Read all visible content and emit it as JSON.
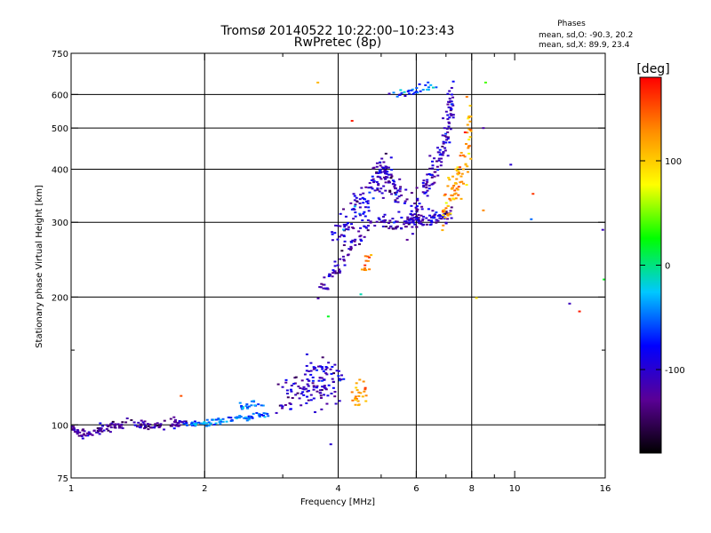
{
  "chart_data": {
    "type": "scatter",
    "title": "Tromsø 20140522 10:22:00–10:23:43",
    "subtitle": "RwPretec (8p)",
    "phase_info": {
      "heading": "Phases",
      "line_o": "mean, sd,O: -90.3, 20.2",
      "line_x": "mean, sd,X:  89.9, 23.4"
    },
    "xlabel": "Frequency [MHz]",
    "ylabel": "Stationary phase Virtual Height [km]",
    "x_scale": "log",
    "y_scale": "log",
    "xlim": [
      1,
      16
    ],
    "ylim": [
      75,
      750
    ],
    "x_ticks": [
      1,
      2,
      4,
      6,
      8,
      10,
      16
    ],
    "x_ticks_minor": [
      3,
      5,
      7,
      9
    ],
    "y_ticks": [
      75,
      100,
      200,
      300,
      400,
      500,
      600,
      750
    ],
    "y_ticks_minor": [
      150
    ],
    "grid_x": [
      2,
      4,
      6,
      8
    ],
    "grid_y": [
      100,
      200,
      300,
      400,
      500,
      600
    ],
    "grid": true,
    "colorbar": {
      "label": "[deg]",
      "ticks": [
        100,
        0,
        -100
      ],
      "range": [
        -180,
        180
      ],
      "colormap": "rainbow",
      "colors": [
        "#000000",
        "#5a0096",
        "#0000ff",
        "#00c8ff",
        "#00ff00",
        "#ffff00",
        "#ff8c00",
        "#ff0000"
      ]
    },
    "groups": [
      {
        "x": [
          1.0,
          1.05,
          1.1,
          1.15,
          1.2,
          1.3,
          1.4,
          1.5,
          1.6,
          1.7,
          1.8
        ],
        "y": [
          98,
          96,
          95,
          97,
          99,
          100,
          101,
          99,
          100,
          101,
          100
        ],
        "phase": -120,
        "spread_x": 0.015,
        "spread_y": 0.012,
        "n": 140
      },
      {
        "x": [
          1.8,
          2.0,
          2.2,
          2.5,
          2.8
        ],
        "y": [
          100,
          101,
          102,
          104,
          106
        ],
        "phase": -50,
        "spread_x": 0.01,
        "spread_y": 0.008,
        "n": 90
      },
      {
        "x": [
          2.4,
          2.7
        ],
        "y": [
          110,
          112
        ],
        "phase": -50,
        "spread_x": 0.02,
        "spread_y": 0.01,
        "n": 20
      },
      {
        "x": [
          3.0,
          3.3,
          3.6,
          3.9
        ],
        "y": [
          115,
          120,
          125,
          125
        ],
        "phase": -110,
        "spread_x": 0.03,
        "spread_y": 0.06,
        "n": 110
      },
      {
        "x": [
          3.4,
          4.0
        ],
        "y": [
          135,
          130
        ],
        "phase": -90,
        "spread_x": 0.03,
        "spread_y": 0.03,
        "n": 25
      },
      {
        "x": [
          4.3,
          4.6
        ],
        "y": [
          115,
          120
        ],
        "phase": 120,
        "spread_x": 0.02,
        "spread_y": 0.03,
        "n": 25
      },
      {
        "x": [
          3.6,
          3.9,
          4.2,
          4.6,
          5.0,
          5.3,
          5.7,
          6.0,
          6.4,
          6.8,
          7.2
        ],
        "y": [
          200,
          225,
          255,
          290,
          300,
          298,
          300,
          302,
          305,
          310,
          318
        ],
        "phase": -110,
        "spread_x": 0.01,
        "spread_y": 0.02,
        "n": 180
      },
      {
        "x": [
          4.0,
          4.4,
          4.8,
          5.1
        ],
        "y": [
          280,
          320,
          360,
          400
        ],
        "phase": -100,
        "spread_x": 0.025,
        "spread_y": 0.04,
        "n": 120
      },
      {
        "x": [
          5.0,
          5.3,
          5.6
        ],
        "y": [
          410,
          370,
          330
        ],
        "phase": -110,
        "spread_x": 0.02,
        "spread_y": 0.04,
        "n": 60
      },
      {
        "x": [
          5.8,
          6.2,
          6.6,
          7.0,
          7.2
        ],
        "y": [
          300,
          340,
          400,
          480,
          600
        ],
        "phase": -110,
        "spread_x": 0.012,
        "spread_y": 0.04,
        "n": 140
      },
      {
        "x": [
          6.8,
          7.3,
          7.8,
          7.95
        ],
        "y": [
          320,
          360,
          420,
          550
        ],
        "phase": 120,
        "spread_x": 0.01,
        "spread_y": 0.05,
        "n": 90
      },
      {
        "x": [
          5.3,
          6.0,
          6.5
        ],
        "y": [
          600,
          610,
          630
        ],
        "phase": -60,
        "spread_x": 0.02,
        "spread_y": 0.01,
        "n": 30
      },
      {
        "x": [
          4.5,
          4.8
        ],
        "y": [
          230,
          260
        ],
        "phase": 130,
        "spread_x": 0.01,
        "spread_y": 0.03,
        "n": 12
      }
    ],
    "isolated_points": [
      {
        "x": 1.77,
        "y": 117,
        "phase": 150
      },
      {
        "x": 3.6,
        "y": 640,
        "phase": 110
      },
      {
        "x": 4.3,
        "y": 520,
        "phase": 170
      },
      {
        "x": 4.5,
        "y": 203,
        "phase": -10
      },
      {
        "x": 3.8,
        "y": 180,
        "phase": 20
      },
      {
        "x": 3.85,
        "y": 90,
        "phase": -100
      },
      {
        "x": 8.6,
        "y": 640,
        "phase": 40
      },
      {
        "x": 8.5,
        "y": 500,
        "phase": -120
      },
      {
        "x": 8.5,
        "y": 320,
        "phase": 130
      },
      {
        "x": 8.2,
        "y": 199,
        "phase": 90
      },
      {
        "x": 9.8,
        "y": 410,
        "phase": -100
      },
      {
        "x": 11.0,
        "y": 350,
        "phase": 160
      },
      {
        "x": 10.9,
        "y": 305,
        "phase": -50
      },
      {
        "x": 13.3,
        "y": 193,
        "phase": -110
      },
      {
        "x": 14.0,
        "y": 185,
        "phase": 170
      },
      {
        "x": 15.8,
        "y": 288,
        "phase": -110
      },
      {
        "x": 15.9,
        "y": 220,
        "phase": 20
      }
    ]
  }
}
